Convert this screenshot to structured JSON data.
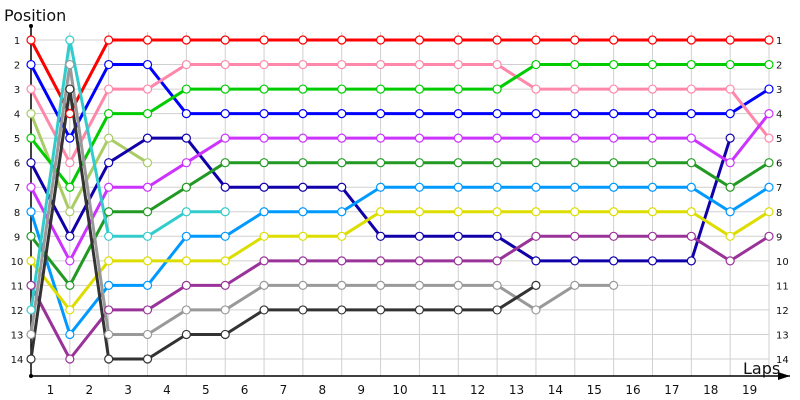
{
  "chart_data": {
    "type": "line",
    "ylabel": "Position",
    "xlabel": "Laps",
    "y_ticks": [
      1,
      2,
      3,
      4,
      5,
      6,
      7,
      8,
      9,
      10,
      11,
      12,
      13,
      14
    ],
    "x_ticks": [
      "1",
      "2",
      "3",
      "4",
      "5",
      "6",
      "7",
      "8",
      "9",
      "10",
      "11",
      "12",
      "13",
      "14",
      "15",
      "16",
      "17",
      "18",
      "19"
    ],
    "y_inverted": true,
    "ylim": [
      1,
      14
    ],
    "grid": true,
    "point_count": 20,
    "series": [
      {
        "color": "#ff0000",
        "values": [
          1,
          4,
          1,
          1,
          1,
          1,
          1,
          1,
          1,
          1,
          1,
          1,
          1,
          1,
          1,
          1,
          1,
          1,
          1,
          1
        ]
      },
      {
        "color": "#0000ff",
        "values": [
          2,
          5,
          2,
          2,
          4,
          4,
          4,
          4,
          4,
          4,
          4,
          4,
          4,
          4,
          4,
          4,
          4,
          4,
          4,
          3
        ]
      },
      {
        "color": "#ff88aa",
        "values": [
          3,
          6,
          3,
          3,
          2,
          2,
          2,
          2,
          2,
          2,
          2,
          2,
          2,
          3,
          3,
          3,
          3,
          3,
          3,
          5
        ]
      },
      {
        "color": "#aacc66",
        "values": [
          4,
          8,
          5,
          6,
          null,
          null,
          null,
          null,
          null,
          null,
          null,
          null,
          null,
          null,
          null,
          null,
          null,
          null,
          null,
          null
        ]
      },
      {
        "color": "#00cc00",
        "values": [
          5,
          7,
          4,
          4,
          3,
          3,
          3,
          3,
          3,
          3,
          3,
          3,
          3,
          2,
          2,
          2,
          2,
          2,
          2,
          2
        ]
      },
      {
        "color": "#1100aa",
        "values": [
          6,
          9,
          6,
          5,
          5,
          7,
          7,
          7,
          7,
          9,
          9,
          9,
          9,
          10,
          10,
          10,
          10,
          10,
          5,
          null
        ]
      },
      {
        "color": "#cc33ff",
        "values": [
          7,
          10,
          7,
          7,
          6,
          5,
          5,
          5,
          5,
          5,
          5,
          5,
          5,
          5,
          5,
          5,
          5,
          5,
          6,
          4
        ]
      },
      {
        "color": "#0099ff",
        "values": [
          8,
          13,
          11,
          11,
          9,
          9,
          8,
          8,
          8,
          7,
          7,
          7,
          7,
          7,
          7,
          7,
          7,
          7,
          8,
          7
        ]
      },
      {
        "color": "#229922",
        "values": [
          9,
          11,
          8,
          8,
          7,
          6,
          6,
          6,
          6,
          6,
          6,
          6,
          6,
          6,
          6,
          6,
          6,
          6,
          7,
          6
        ]
      },
      {
        "color": "#dddd00",
        "values": [
          10,
          12,
          10,
          10,
          10,
          10,
          9,
          9,
          9,
          8,
          8,
          8,
          8,
          8,
          8,
          8,
          8,
          8,
          9,
          8
        ]
      },
      {
        "color": "#993399",
        "values": [
          11,
          14,
          12,
          12,
          11,
          11,
          10,
          10,
          10,
          10,
          10,
          10,
          10,
          9,
          9,
          9,
          9,
          9,
          10,
          9
        ]
      },
      {
        "color": "#33cccc",
        "values": [
          12,
          1,
          9,
          9,
          8,
          8,
          null,
          null,
          null,
          null,
          null,
          null,
          null,
          null,
          null,
          null,
          null,
          null,
          null,
          null
        ]
      },
      {
        "color": "#999999",
        "values": [
          13,
          2,
          13,
          13,
          12,
          12,
          11,
          11,
          11,
          11,
          11,
          11,
          11,
          12,
          11,
          11,
          null,
          null,
          null,
          null
        ]
      },
      {
        "color": "#333333",
        "values": [
          14,
          3,
          14,
          14,
          13,
          13,
          12,
          12,
          12,
          12,
          12,
          12,
          12,
          11,
          null,
          null,
          null,
          null,
          null,
          null
        ]
      }
    ]
  }
}
